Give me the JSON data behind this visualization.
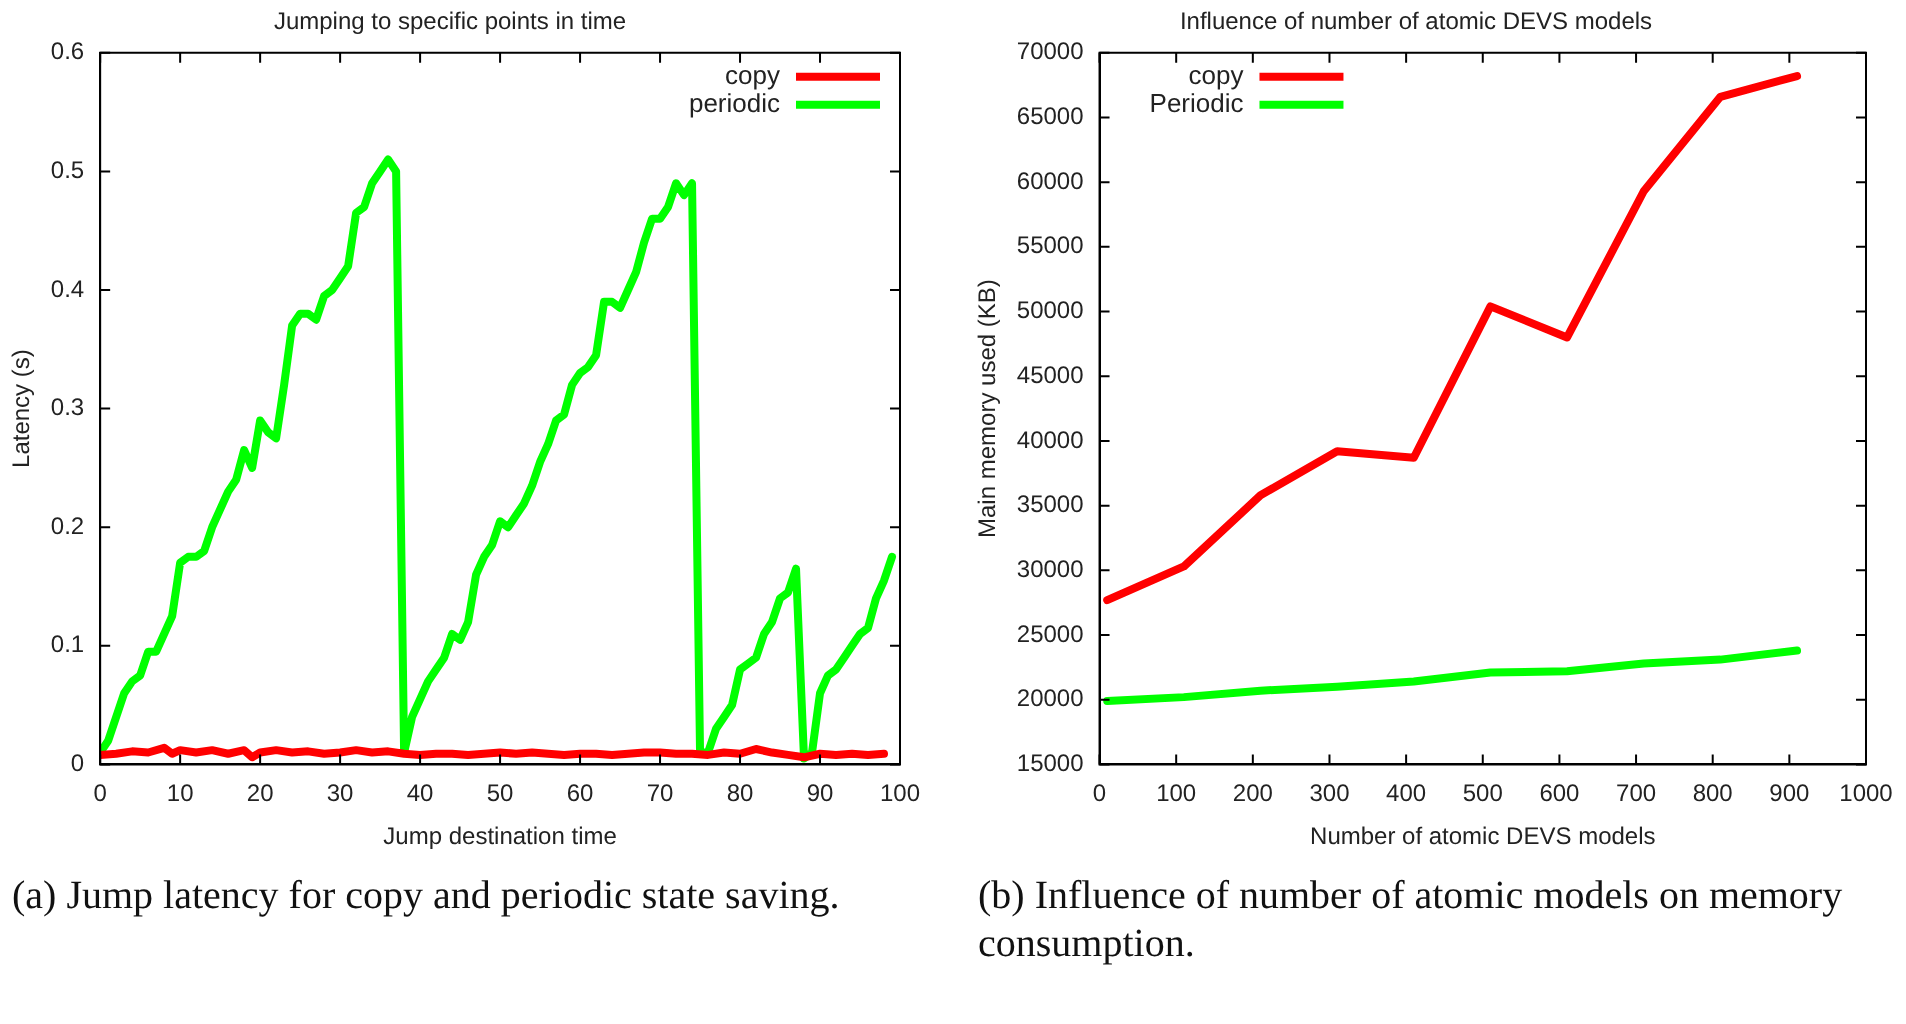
{
  "chart_data": [
    {
      "type": "line",
      "title": "Jumping to specific points in time",
      "xlabel": "Jump destination time",
      "ylabel": "Latency (s)",
      "xlim": [
        0,
        100
      ],
      "xticks": [
        0,
        10,
        20,
        30,
        40,
        50,
        60,
        70,
        80,
        90,
        100
      ],
      "ylim": [
        0,
        0.6
      ],
      "yticks": [
        0,
        0.1,
        0.2,
        0.3,
        0.4,
        0.5,
        0.6
      ],
      "grid": false,
      "legend": "top right",
      "marker": "none",
      "line_style": "solid",
      "annotations": [
        "(a) Jump latency for copy and periodic state saving."
      ],
      "series": [
        {
          "name": "copy",
          "color": "#ff0000",
          "x": [
            0,
            2,
            4,
            6,
            8,
            9,
            10,
            12,
            14,
            16,
            18,
            19,
            20,
            22,
            24,
            26,
            28,
            30,
            32,
            34,
            36,
            38,
            40,
            42,
            44,
            46,
            48,
            50,
            52,
            54,
            56,
            58,
            60,
            62,
            64,
            66,
            68,
            70,
            72,
            74,
            76,
            78,
            80,
            82,
            84,
            86,
            88,
            90,
            92,
            94,
            96,
            98
          ],
          "values": [
            0.008,
            0.009,
            0.011,
            0.01,
            0.014,
            0.009,
            0.012,
            0.01,
            0.012,
            0.009,
            0.012,
            0.006,
            0.01,
            0.012,
            0.01,
            0.011,
            0.009,
            0.01,
            0.012,
            0.01,
            0.011,
            0.009,
            0.008,
            0.009,
            0.009,
            0.008,
            0.009,
            0.01,
            0.009,
            0.01,
            0.009,
            0.008,
            0.009,
            0.009,
            0.008,
            0.009,
            0.01,
            0.01,
            0.009,
            0.009,
            0.008,
            0.01,
            0.009,
            0.013,
            0.01,
            0.008,
            0.006,
            0.009,
            0.008,
            0.009,
            0.008,
            0.009
          ]
        },
        {
          "name": "periodic",
          "color": "#00ff00",
          "x": [
            0,
            1,
            2,
            3,
            4,
            5,
            6,
            7,
            8,
            9,
            10,
            11,
            12,
            13,
            14,
            15,
            16,
            17,
            18,
            19,
            20,
            21,
            22,
            23,
            24,
            25,
            26,
            27,
            28,
            29,
            30,
            31,
            32,
            33,
            34,
            35,
            36,
            37,
            38,
            39,
            40,
            41,
            42,
            43,
            44,
            45,
            46,
            47,
            48,
            49,
            50,
            51,
            52,
            53,
            54,
            55,
            56,
            57,
            58,
            59,
            60,
            61,
            62,
            63,
            64,
            65,
            66,
            67,
            68,
            69,
            70,
            71,
            72,
            73,
            74,
            75,
            76,
            77,
            78,
            79,
            80,
            81,
            82,
            83,
            84,
            85,
            86,
            87,
            88,
            89,
            90,
            91,
            92,
            93,
            94,
            95,
            96,
            97,
            98,
            99
          ],
          "values": [
            0.01,
            0.02,
            0.04,
            0.06,
            0.07,
            0.075,
            0.095,
            0.095,
            0.11,
            0.125,
            0.17,
            0.175,
            0.175,
            0.18,
            0.2,
            0.215,
            0.23,
            0.24,
            0.265,
            0.25,
            0.29,
            0.28,
            0.275,
            0.32,
            0.37,
            0.38,
            0.38,
            0.375,
            0.395,
            0.4,
            0.41,
            0.42,
            0.465,
            0.47,
            0.49,
            0.5,
            0.51,
            0.5,
            0.01,
            0.04,
            0.055,
            0.07,
            0.08,
            0.09,
            0.11,
            0.105,
            0.12,
            0.16,
            0.175,
            0.185,
            0.205,
            0.2,
            0.21,
            0.22,
            0.235,
            0.255,
            0.27,
            0.29,
            0.295,
            0.32,
            0.33,
            0.335,
            0.345,
            0.39,
            0.39,
            0.385,
            0.4,
            0.415,
            0.44,
            0.46,
            0.46,
            0.47,
            0.49,
            0.48,
            0.49,
            0.01,
            0.01,
            0.03,
            0.04,
            0.05,
            0.08,
            0.085,
            0.09,
            0.11,
            0.12,
            0.14,
            0.145,
            0.165,
            0.005,
            0.01,
            0.06,
            0.075,
            0.08,
            0.09,
            0.1,
            0.11,
            0.115,
            0.14,
            0.155,
            0.175
          ]
        }
      ]
    },
    {
      "type": "line",
      "title": "Influence of number of atomic DEVS models",
      "xlabel": "Number of atomic DEVS models",
      "ylabel": "Main memory used (KB)",
      "xlim": [
        0,
        1000
      ],
      "xticks": [
        0,
        100,
        200,
        300,
        400,
        500,
        600,
        700,
        800,
        900,
        1000
      ],
      "ylim": [
        15000,
        70000
      ],
      "yticks": [
        15000,
        20000,
        25000,
        30000,
        35000,
        40000,
        45000,
        50000,
        55000,
        60000,
        65000,
        70000
      ],
      "grid": false,
      "legend": "top left",
      "marker": "none",
      "line_style": "solid",
      "annotations": [
        "(b) Influence of number of atomic models on memory consumption."
      ],
      "x": [
        10,
        110,
        210,
        310,
        410,
        510,
        610,
        710,
        810,
        910
      ],
      "series": [
        {
          "name": "copy",
          "color": "#ff0000",
          "values": [
            27700,
            30300,
            35800,
            39200,
            38700,
            50400,
            48000,
            59300,
            66600,
            68200
          ]
        },
        {
          "name": "Periodic",
          "color": "#00ff00",
          "values": [
            19900,
            20200,
            20700,
            21000,
            21400,
            22100,
            22200,
            22800,
            23100,
            23800
          ]
        }
      ]
    }
  ]
}
